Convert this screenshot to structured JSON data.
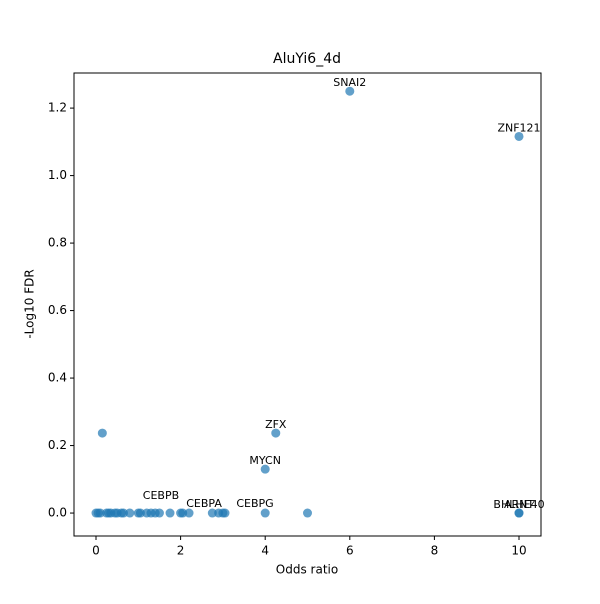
{
  "chart_data": {
    "type": "scatter",
    "title": "AluYi6_4d",
    "x_label": "Odds ratio",
    "y_label": "-Log10 FDR",
    "color": "#1f77b4",
    "x": [
      0,
      0.05,
      0.1,
      0.25,
      0.3,
      0.35,
      0.45,
      0.5,
      0.6,
      0.65,
      0.8,
      1.0,
      1.05,
      1.2,
      1.3,
      1.4,
      1.5,
      1.75,
      2.0,
      2.05,
      2.2,
      2.75,
      2.9,
      3.0,
      3.05,
      4.0,
      5.0,
      10.0,
      10.0,
      0.15,
      4.25,
      4.0,
      6.0,
      10.0
    ],
    "values": [
      0,
      0,
      0,
      0,
      0,
      0,
      0,
      0,
      0,
      0,
      0,
      0,
      0,
      0,
      0,
      0,
      0,
      0,
      0,
      0,
      0,
      0,
      0,
      0,
      0,
      0,
      0,
      0,
      0,
      0.237,
      0.237,
      0.13,
      1.25,
      1.116
    ],
    "labels": [
      null,
      null,
      null,
      null,
      null,
      null,
      null,
      null,
      null,
      null,
      null,
      null,
      null,
      null,
      "CEBPB",
      null,
      null,
      null,
      null,
      null,
      "CEBPA",
      null,
      null,
      null,
      "CEBPG",
      null,
      null,
      "BHLHE40",
      "ARNT",
      null,
      "ZFX",
      "MYCN",
      "SNAI2",
      "ZNF121"
    ],
    "xlim": [
      -0.52,
      10.52
    ],
    "ylim": [
      -0.068,
      1.304
    ],
    "xticks": [
      0,
      2,
      4,
      6,
      8,
      10
    ],
    "yticks": [
      {
        "value": 0,
        "label": "0.0"
      },
      {
        "value": 0.2,
        "label": "0.2"
      },
      {
        "value": 0.4,
        "label": "0.4"
      },
      {
        "value": 0.6,
        "label": "0.6"
      },
      {
        "value": 0.8,
        "label": "0.8"
      },
      {
        "value": 1.0,
        "label": "1.0"
      },
      {
        "value": 1.2,
        "label": "1.2"
      }
    ]
  }
}
